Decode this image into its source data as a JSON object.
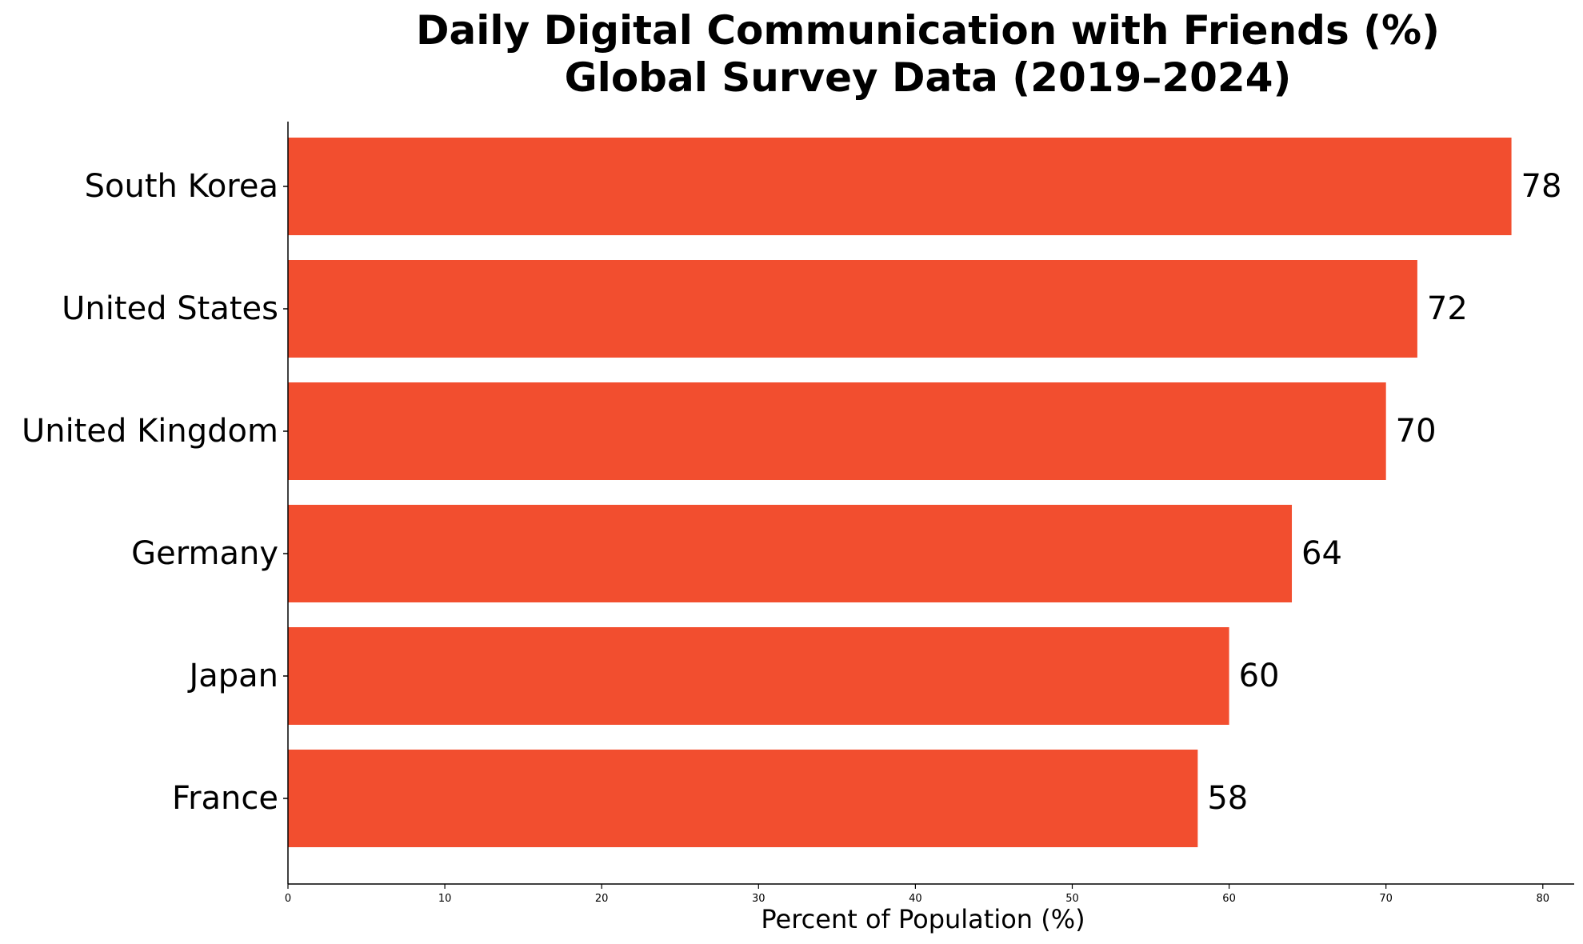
{
  "chart_data": {
    "type": "bar",
    "orientation": "horizontal",
    "title_lines": [
      "Daily Digital Communication with Friends (%)",
      "Global Survey Data (2019–2024)"
    ],
    "categories": [
      "South Korea",
      "United States",
      "United Kingdom",
      "Germany",
      "Japan",
      "France"
    ],
    "values": [
      78,
      72,
      70,
      64,
      60,
      58
    ],
    "value_labels": [
      "78",
      "72",
      "70",
      "64",
      "60",
      "58"
    ],
    "xlabel": "Percent of Population (%)",
    "ylabel": "",
    "xlim": [
      0,
      82
    ],
    "x_ticks": [
      0,
      10,
      20,
      30,
      40,
      50,
      60,
      70,
      80
    ],
    "x_tick_labels": [
      "0",
      "10",
      "20",
      "30",
      "40",
      "50",
      "60",
      "70",
      "80"
    ],
    "bar_color": "#f24e2f",
    "grid": false,
    "legend": "none"
  }
}
